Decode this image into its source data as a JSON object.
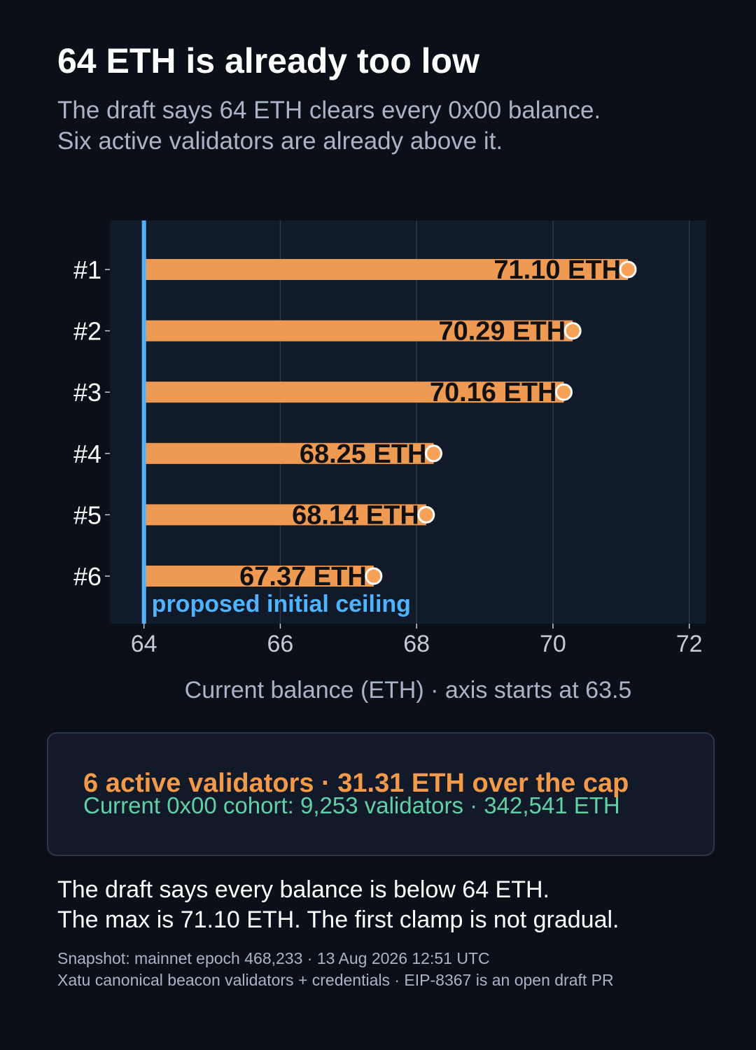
{
  "title": "64 ETH is already too low",
  "subtitle": [
    "The draft says 64 ETH clears every 0x00 balance.",
    "Six active validators are already above it."
  ],
  "chart_data": {
    "type": "bar",
    "orientation": "horizontal",
    "categories": [
      "#1",
      "#2",
      "#3",
      "#4",
      "#5",
      "#6"
    ],
    "values": [
      71.1,
      70.29,
      70.16,
      68.25,
      68.14,
      67.37
    ],
    "value_labels": [
      "71.10 ETH",
      "70.29 ETH",
      "70.16 ETH",
      "68.25 ETH",
      "68.14 ETH",
      "67.37 ETH"
    ],
    "bar_start": 64,
    "xlim": [
      63.5,
      72.25
    ],
    "xticks": [
      64,
      66,
      68,
      70,
      72
    ],
    "xlabel": "Current balance (ETH)  ·  axis starts at 63.5",
    "ylabel": "",
    "grid": true,
    "reference_line": {
      "value": 64,
      "label": "proposed initial ceiling"
    },
    "colors": {
      "bar": "#ee9a52",
      "marker": "#f7a157",
      "marker_stroke": "#ffffff",
      "reference": "#4fb3ff",
      "plot_bg": "#111a29",
      "grid": "#2e3a4c",
      "value_label": "#111111"
    }
  },
  "callout": {
    "headline": "6 active validators  ·  31.31 ETH over the cap",
    "detail": "Current 0x00 cohort: 9,253 validators  ·  342,541 ETH"
  },
  "note": [
    "The draft says every balance is below 64 ETH.",
    "The max is 71.10 ETH. The first clamp is not gradual."
  ],
  "footer": [
    "Snapshot: mainnet epoch 468,233 · 13 Aug 2026 12:51 UTC",
    "Xatu canonical beacon validators + credentials · EIP-8367 is an open draft PR"
  ]
}
